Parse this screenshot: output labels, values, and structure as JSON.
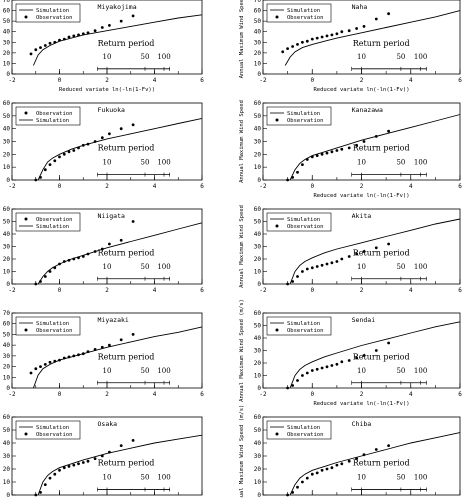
{
  "figure": {
    "legend_labels": {
      "simulation": "Simulation",
      "observation": "Observation"
    },
    "return_period_label": "Return period",
    "return_period_ticks": [
      "10",
      "50",
      "100"
    ],
    "xlabel_reduced": "Reduced variate  ln(-ln(1-Fv))",
    "ylabel_annual": "Annual Maximum Wind Speed",
    "ylabel_annual_unit": "Annual Maximum Wind Speed  (m/s)"
  },
  "chart_data": [
    {
      "type": "line",
      "panel": "Miyakojima",
      "title": "Miyakojima",
      "xlabel": "Reduced variate ln(-ln(1-Fv))",
      "ylabel": "",
      "xlim": [
        -2,
        6
      ],
      "ylim": [
        0,
        70
      ],
      "legend": "top-left",
      "legend_order": [
        "Simulation",
        "Observation"
      ],
      "series": [
        {
          "name": "Simulation",
          "x": [
            -1.1,
            -0.9,
            -0.7,
            -0.4,
            0,
            0.5,
            1,
            2,
            3,
            4,
            5,
            6
          ],
          "y": [
            8,
            18,
            23,
            27,
            31,
            34,
            37,
            41,
            45,
            49,
            53,
            56
          ]
        },
        {
          "name": "Observation",
          "x": [
            -1.2,
            -1,
            -0.8,
            -0.6,
            -0.4,
            -0.2,
            0,
            0.2,
            0.4,
            0.6,
            0.8,
            1,
            1.2,
            1.5,
            1.8,
            2.1,
            2.6,
            3.1
          ],
          "y": [
            19,
            23,
            25,
            27,
            29,
            30,
            32,
            33,
            35,
            36,
            37,
            38,
            39,
            41,
            44,
            46,
            50,
            55
          ]
        }
      ]
    },
    {
      "type": "line",
      "panel": "Naha",
      "title": "Naha",
      "xlabel": "",
      "ylabel": "Annual Maximum Wind Speed",
      "xlim": [
        -2,
        6
      ],
      "ylim": [
        0,
        70
      ],
      "legend": "top-left",
      "legend_order": [
        "Simulation",
        "Observation"
      ],
      "series": [
        {
          "name": "Simulation",
          "x": [
            -1.1,
            -0.9,
            -0.7,
            -0.4,
            0,
            0.5,
            1,
            2,
            3,
            4,
            5,
            6
          ],
          "y": [
            8,
            16,
            21,
            25,
            28,
            31,
            34,
            39,
            44,
            49,
            54,
            60
          ]
        },
        {
          "name": "Observation",
          "x": [
            -1.2,
            -1,
            -0.8,
            -0.6,
            -0.4,
            -0.2,
            0,
            0.2,
            0.4,
            0.6,
            0.8,
            1,
            1.2,
            1.5,
            1.8,
            2.1,
            2.6,
            3.1
          ],
          "y": [
            21,
            24,
            26,
            28,
            30,
            31,
            33,
            34,
            35,
            36,
            37,
            38,
            40,
            41,
            43,
            45,
            52,
            57
          ]
        }
      ]
    },
    {
      "type": "line",
      "panel": "Fukuoka",
      "title": "Fukuoka",
      "xlabel": "Reduced variate ln(-ln(1-Fv))",
      "ylabel": "",
      "xlim": [
        -2,
        6
      ],
      "ylim": [
        0,
        60
      ],
      "legend": "top-left",
      "legend_order": [
        "Observation",
        "Simulation"
      ],
      "series": [
        {
          "name": "Simulation",
          "x": [
            -0.9,
            -0.7,
            -0.5,
            -0.3,
            0,
            0.5,
            1,
            2,
            3,
            4,
            5,
            6
          ],
          "y": [
            0,
            8,
            14,
            17,
            20,
            24,
            27,
            32,
            36,
            40,
            44,
            48
          ]
        },
        {
          "name": "Observation",
          "x": [
            -1,
            -0.8,
            -0.6,
            -0.4,
            -0.2,
            0,
            0.2,
            0.4,
            0.6,
            0.8,
            1,
            1.2,
            1.5,
            1.8,
            2.1,
            2.6,
            3.1
          ],
          "y": [
            0,
            2,
            8,
            12,
            15,
            18,
            20,
            22,
            23,
            25,
            27,
            28,
            30,
            33,
            36,
            40,
            43
          ]
        }
      ]
    },
    {
      "type": "line",
      "panel": "Kanazawa",
      "title": "Kanazawa",
      "xlabel": "",
      "ylabel": "Annual Maximum Wind Speed",
      "xlim": [
        -2,
        6
      ],
      "ylim": [
        0,
        60
      ],
      "legend": "top-left",
      "legend_order": [
        "Simulation",
        "Observation"
      ],
      "series": [
        {
          "name": "Simulation",
          "x": [
            -0.9,
            -0.7,
            -0.5,
            -0.3,
            0,
            0.5,
            1,
            2,
            3,
            4,
            5,
            6
          ],
          "y": [
            0,
            8,
            13,
            16,
            19,
            22,
            25,
            31,
            36,
            41,
            46,
            51
          ]
        },
        {
          "name": "Observation",
          "x": [
            -1,
            -0.8,
            -0.6,
            -0.4,
            -0.2,
            0,
            0.2,
            0.4,
            0.6,
            0.8,
            1,
            1.2,
            1.5,
            1.8,
            2.1,
            2.6,
            3.1
          ],
          "y": [
            0,
            2,
            6,
            12,
            16,
            18,
            19,
            20,
            21,
            22,
            23,
            24,
            25,
            27,
            30,
            34,
            38
          ]
        }
      ]
    },
    {
      "type": "line",
      "panel": "Niigata",
      "title": "Niigata",
      "xlabel": "",
      "ylabel": "",
      "xlim": [
        -2,
        6
      ],
      "ylim": [
        0,
        60
      ],
      "legend": "top-left",
      "legend_order": [
        "Observation",
        "Simulation"
      ],
      "series": [
        {
          "name": "Simulation",
          "x": [
            -0.9,
            -0.7,
            -0.5,
            -0.3,
            0,
            0.5,
            1,
            2,
            3,
            4,
            5,
            6
          ],
          "y": [
            0,
            6,
            10,
            13,
            16,
            20,
            23,
            29,
            34,
            39,
            44,
            49
          ]
        },
        {
          "name": "Observation",
          "x": [
            -1,
            -0.8,
            -0.6,
            -0.4,
            -0.2,
            0,
            0.2,
            0.4,
            0.6,
            0.8,
            1,
            1.2,
            1.5,
            1.8,
            2.1,
            2.6,
            3.1
          ],
          "y": [
            0,
            2,
            6,
            10,
            13,
            16,
            18,
            19,
            20,
            21,
            22,
            24,
            26,
            28,
            32,
            35,
            50
          ]
        }
      ]
    },
    {
      "type": "line",
      "panel": "Akita",
      "title": "Akita",
      "xlabel": "",
      "ylabel": "Annual Maximum Wind Speed",
      "xlim": [
        -2,
        6
      ],
      "ylim": [
        0,
        60
      ],
      "legend": "top-left",
      "legend_order": [
        "Simulation",
        "Observation"
      ],
      "series": [
        {
          "name": "Simulation",
          "x": [
            -0.9,
            -0.7,
            -0.5,
            -0.3,
            0,
            0.5,
            1,
            2,
            3,
            4,
            5,
            6
          ],
          "y": [
            0,
            10,
            15,
            18,
            21,
            25,
            28,
            33,
            38,
            43,
            48,
            52
          ]
        },
        {
          "name": "Observation",
          "x": [
            -1,
            -0.8,
            -0.6,
            -0.4,
            -0.2,
            0,
            0.2,
            0.4,
            0.6,
            0.8,
            1,
            1.2,
            1.5,
            1.8,
            2.1,
            2.6,
            3.1
          ],
          "y": [
            0,
            2,
            6,
            10,
            12,
            13,
            14,
            15,
            16,
            17,
            18,
            20,
            22,
            24,
            26,
            29,
            32
          ]
        }
      ]
    },
    {
      "type": "line",
      "panel": "Miyazaki",
      "title": "Miyazaki",
      "xlabel": "",
      "ylabel": "",
      "xlim": [
        -2,
        6
      ],
      "ylim": [
        0,
        70
      ],
      "legend": "top-left",
      "legend_order": [
        "Simulation",
        "Observation"
      ],
      "series": [
        {
          "name": "Simulation",
          "x": [
            -1.1,
            -0.9,
            -0.7,
            -0.4,
            0,
            0.5,
            1,
            2,
            3,
            4,
            5,
            6
          ],
          "y": [
            0,
            12,
            18,
            22,
            26,
            29,
            32,
            38,
            43,
            48,
            52,
            57
          ]
        },
        {
          "name": "Observation",
          "x": [
            -1.2,
            -1,
            -0.8,
            -0.6,
            -0.4,
            -0.2,
            0,
            0.2,
            0.4,
            0.6,
            0.8,
            1,
            1.2,
            1.5,
            1.8,
            2.1,
            2.6,
            3.1
          ],
          "y": [
            14,
            18,
            20,
            22,
            24,
            25,
            26,
            28,
            29,
            30,
            31,
            32,
            34,
            36,
            38,
            40,
            45,
            50
          ]
        }
      ]
    },
    {
      "type": "line",
      "panel": "Sendai",
      "title": "Sendai",
      "xlabel": "Reduced variate ln(-ln(1-Fv))",
      "ylabel": "Annual Maximum Wind Speed (m/s)",
      "xlim": [
        -2,
        6
      ],
      "ylim": [
        0,
        60
      ],
      "legend": "top-left",
      "legend_order": [
        "Simulation",
        "Observation"
      ],
      "series": [
        {
          "name": "Simulation",
          "x": [
            -0.9,
            -0.7,
            -0.5,
            -0.3,
            0,
            0.5,
            1,
            2,
            3,
            4,
            5,
            6
          ],
          "y": [
            0,
            10,
            15,
            18,
            21,
            25,
            28,
            34,
            39,
            44,
            49,
            53
          ]
        },
        {
          "name": "Observation",
          "x": [
            -1,
            -0.8,
            -0.6,
            -0.4,
            -0.2,
            0,
            0.2,
            0.4,
            0.6,
            0.8,
            1,
            1.2,
            1.5,
            1.8,
            2.1,
            2.6,
            3.1
          ],
          "y": [
            0,
            2,
            6,
            10,
            12,
            14,
            15,
            16,
            17,
            18,
            19,
            21,
            22,
            24,
            26,
            30,
            36
          ]
        }
      ]
    },
    {
      "type": "line",
      "panel": "Osaka",
      "title": "Osaka",
      "xlabel": "",
      "ylabel": "",
      "xlim": [
        -2,
        6
      ],
      "ylim": [
        0,
        60
      ],
      "legend": "top-left",
      "legend_order": [
        "Simulation",
        "Observation"
      ],
      "series": [
        {
          "name": "Simulation",
          "x": [
            -0.9,
            -0.7,
            -0.5,
            -0.3,
            0,
            0.5,
            1,
            2,
            3,
            4,
            5,
            6
          ],
          "y": [
            0,
            10,
            15,
            18,
            21,
            24,
            27,
            32,
            36,
            40,
            43,
            46
          ]
        },
        {
          "name": "Observation",
          "x": [
            -1,
            -0.8,
            -0.6,
            -0.4,
            -0.2,
            0,
            0.2,
            0.4,
            0.6,
            0.8,
            1,
            1.2,
            1.5,
            1.8,
            2.1,
            2.6,
            3.1
          ],
          "y": [
            0,
            2,
            8,
            13,
            16,
            19,
            21,
            22,
            23,
            24,
            25,
            26,
            28,
            30,
            33,
            38,
            42
          ]
        }
      ]
    },
    {
      "type": "line",
      "panel": "Chiba",
      "title": "Chiba",
      "xlabel": "",
      "ylabel": "Annual Maximum Wind Speed (m/s)",
      "xlim": [
        -2,
        6
      ],
      "ylim": [
        0,
        60
      ],
      "legend": "top-left",
      "legend_order": [
        "Simulation",
        "Observation"
      ],
      "series": [
        {
          "name": "Simulation",
          "x": [
            -0.9,
            -0.7,
            -0.5,
            -0.3,
            0,
            0.5,
            1,
            2,
            3,
            4,
            5,
            6
          ],
          "y": [
            0,
            8,
            13,
            16,
            19,
            22,
            25,
            30,
            35,
            40,
            44,
            48
          ]
        },
        {
          "name": "Observation",
          "x": [
            -1,
            -0.8,
            -0.6,
            -0.4,
            -0.2,
            0,
            0.2,
            0.4,
            0.6,
            0.8,
            1,
            1.2,
            1.5,
            1.8,
            2.1,
            2.6,
            3.1
          ],
          "y": [
            0,
            2,
            6,
            10,
            13,
            16,
            17,
            19,
            20,
            21,
            23,
            24,
            26,
            28,
            31,
            35,
            38
          ]
        }
      ]
    }
  ]
}
